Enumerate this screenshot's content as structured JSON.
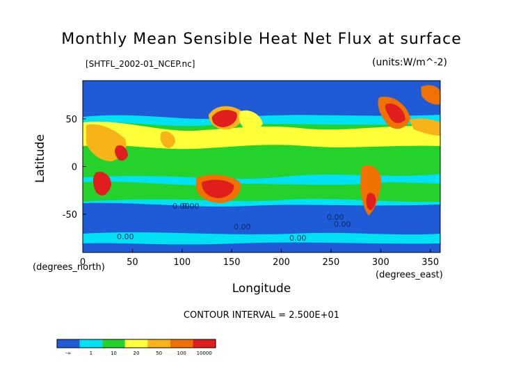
{
  "chart_data": {
    "type": "heatmap",
    "title": "Monthly Mean Sensible Heat Net Flux at surface",
    "subtitle": "[SHTFL_2002-01_NCEP.nc]",
    "units_label": "(units:W/m^-2)",
    "xlabel": "Longitude",
    "ylabel": "Latitude",
    "x_units_note": "(degrees_east)",
    "y_units_note": "(degrees_north)",
    "xlim": [
      0,
      360
    ],
    "ylim": [
      -90,
      90
    ],
    "x_ticks": [
      0,
      50,
      100,
      150,
      200,
      250,
      300,
      350
    ],
    "y_ticks": [
      50,
      0,
      -50
    ],
    "contour_interval_text": "CONTOUR INTERVAL = 2.500E+01",
    "contour_labels": [
      "0.00",
      "0.00",
      "0.00",
      "0.00",
      "0.00",
      "0.00",
      "0.00"
    ],
    "colorbar": {
      "bins": [
        {
          "color": "#1f5bd7"
        },
        {
          "color": "#00e1f4"
        },
        {
          "color": "#25d12b"
        },
        {
          "color": "#ffff3a"
        },
        {
          "color": "#f7b318"
        },
        {
          "color": "#f07000"
        },
        {
          "color": "#e11e1e"
        }
      ],
      "tick_labels": [
        "-∞",
        "1",
        "10",
        "20",
        "50",
        "100",
        "10000"
      ]
    },
    "grid": false,
    "legend": "bottom-left colorbar"
  }
}
